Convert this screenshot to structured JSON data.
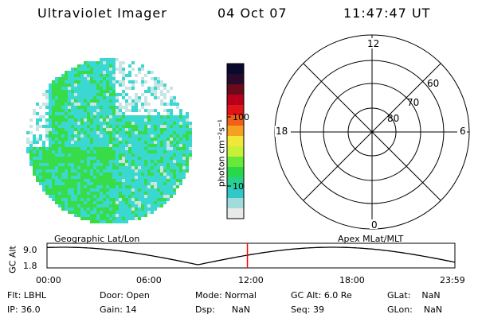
{
  "header": {
    "instrument": "Ultraviolet Imager",
    "date": "04 Oct 07",
    "time": "11:47:47 UT"
  },
  "colorbar": {
    "unit_label": "photon cm⁻²s⁻¹",
    "ticks": [
      "100",
      "10"
    ],
    "colors": [
      "#0a0a30",
      "#2a0a2a",
      "#6a0a1a",
      "#b8001c",
      "#e01418",
      "#f06018",
      "#f5a020",
      "#f0e838",
      "#c8f038",
      "#68e838",
      "#28d848",
      "#28d090",
      "#30c8c8",
      "#a0dcdc",
      "#e8eaea"
    ]
  },
  "auroral_image": {
    "colors": {
      "cyan": "#3ad8d0",
      "green": "#38dc48",
      "pale": "#c8e4e4"
    }
  },
  "polar_grid": {
    "mlt_labels": {
      "top": "12",
      "left": "18",
      "right": "6",
      "bottom": "0"
    },
    "lat_labels": [
      "60",
      "70",
      "80"
    ]
  },
  "timeline": {
    "left_label": "Geographic Lat/Lon",
    "right_label": "Apex MLat/MLT",
    "y_axis_label": "GC Alt",
    "y_ticks": [
      "9.0",
      "1.8"
    ],
    "x_ticks": [
      "00:00",
      "06:00",
      "12:00",
      "18:00",
      "23:59"
    ],
    "current_marker_time": "11:47",
    "marker_color": "#ff0000"
  },
  "status": {
    "row1": [
      {
        "label": "Flt:",
        "value": "LBHL"
      },
      {
        "label": "Door:",
        "value": "Open"
      },
      {
        "label": "Mode:",
        "value": "Normal"
      },
      {
        "label": "GC Alt:",
        "value": "6.0 Re"
      },
      {
        "label": "GLat:",
        "value": "NaN"
      }
    ],
    "row2": [
      {
        "label": "IP:",
        "value": "36.0"
      },
      {
        "label": "Gain:",
        "value": "14"
      },
      {
        "label": "Dsp:",
        "value": "NaN"
      },
      {
        "label": "Seq:",
        "value": "39"
      },
      {
        "label": "GLon:",
        "value": "NaN"
      }
    ]
  }
}
